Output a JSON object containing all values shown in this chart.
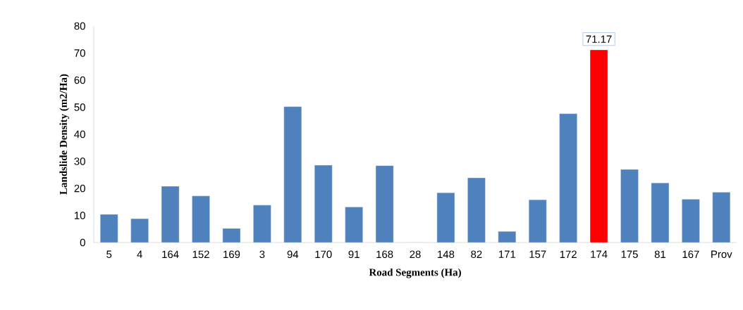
{
  "chart_data": {
    "type": "bar",
    "xlabel": "Road Segments (Ha)",
    "ylabel": "Landslide Density (m2/Ha)",
    "categories": [
      "5",
      "4",
      "164",
      "152",
      "169",
      "3",
      "94",
      "170",
      "91",
      "168",
      "28",
      "148",
      "82",
      "171",
      "157",
      "172",
      "174",
      "175",
      "81",
      "167",
      "Prov"
    ],
    "values": [
      10.4,
      8.8,
      20.8,
      17.2,
      5.2,
      13.8,
      50.2,
      28.6,
      13.1,
      28.4,
      0,
      18.4,
      23.9,
      4.1,
      15.8,
      47.6,
      71.17,
      27.0,
      22.0,
      16.0,
      18.6
    ],
    "colors": [
      "#4f81bd",
      "#4f81bd",
      "#4f81bd",
      "#4f81bd",
      "#4f81bd",
      "#4f81bd",
      "#4f81bd",
      "#4f81bd",
      "#4f81bd",
      "#4f81bd",
      "#4f81bd",
      "#4f81bd",
      "#4f81bd",
      "#4f81bd",
      "#4f81bd",
      "#4f81bd",
      "#ff0000",
      "#4f81bd",
      "#4f81bd",
      "#4f81bd",
      "#4f81bd"
    ],
    "value_labels": [
      null,
      null,
      null,
      null,
      null,
      null,
      null,
      null,
      null,
      null,
      null,
      null,
      null,
      null,
      null,
      null,
      "71.17",
      null,
      null,
      null,
      null
    ],
    "ylim": [
      0,
      80
    ],
    "yticks": [
      0,
      10,
      20,
      30,
      40,
      50,
      60,
      70,
      80
    ],
    "grid": false
  }
}
